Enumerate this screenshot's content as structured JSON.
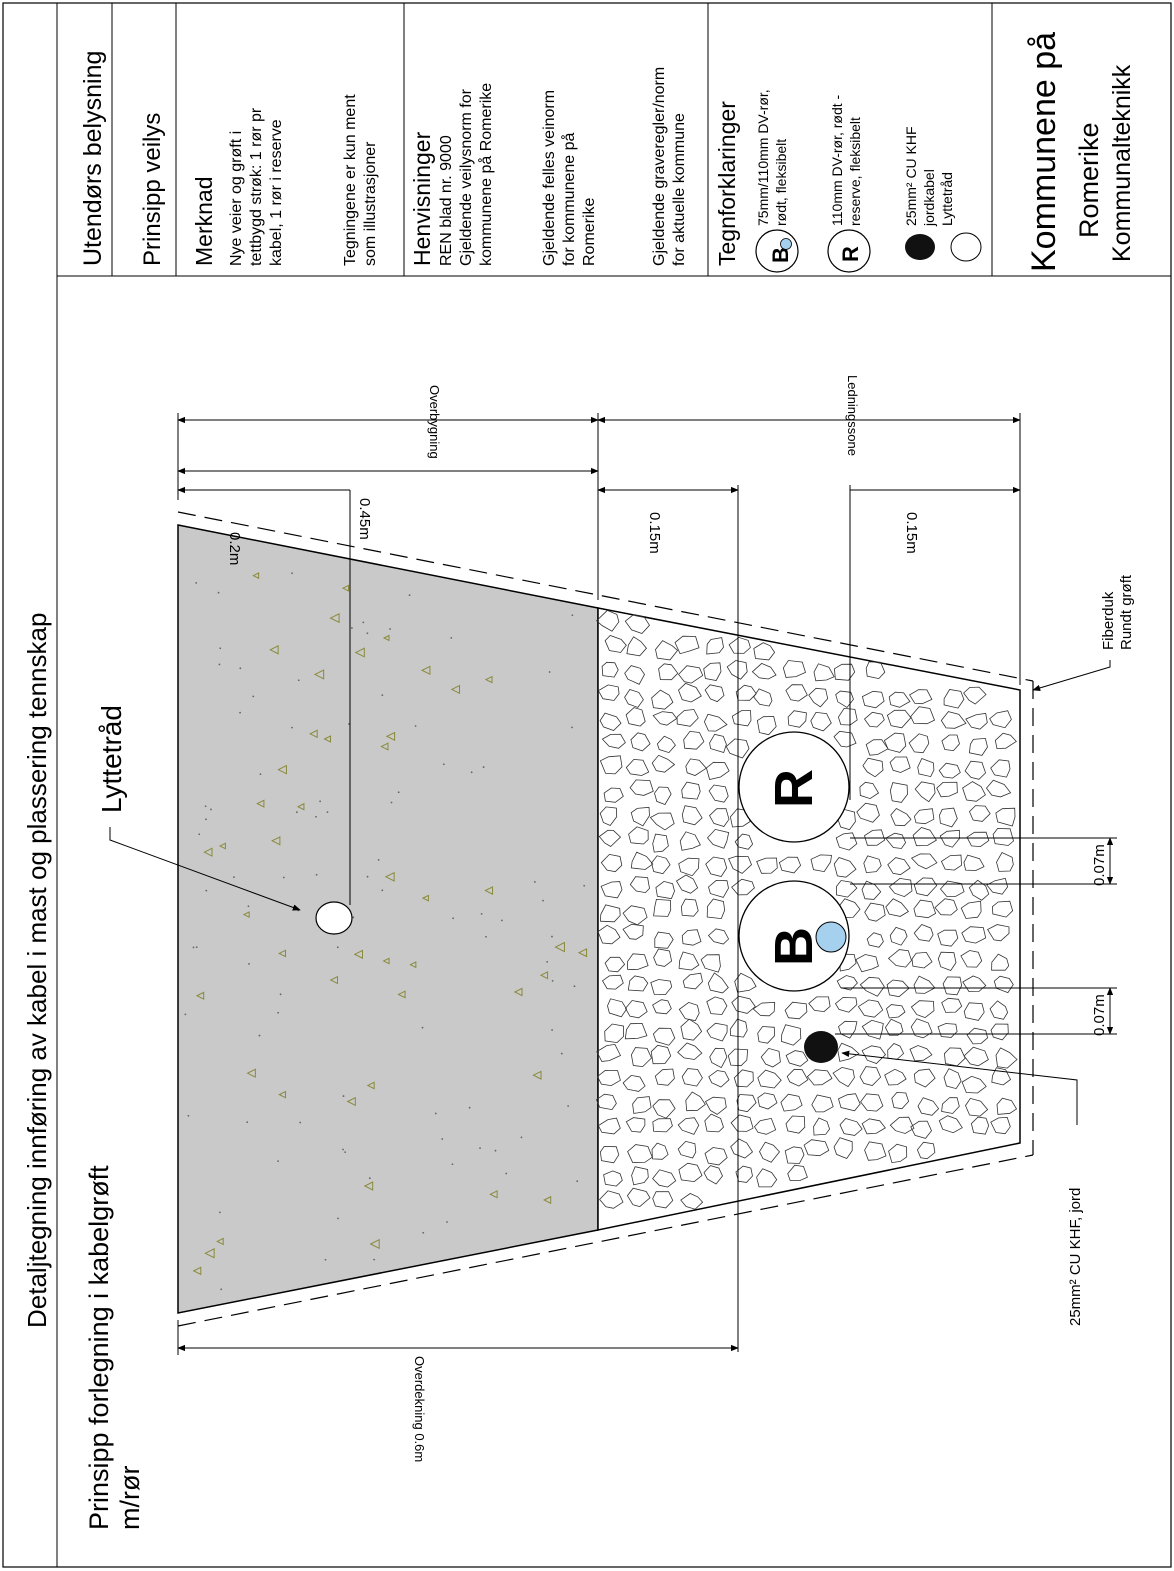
{
  "title": "Detaljtegning innføring av kabel i mast og plassering tennskap",
  "subtitle_line1": "Prinsipp forlegning i kabelgrøft",
  "subtitle_line2": "m/rør",
  "title_block": {
    "row1": "Utendørs belysning",
    "row2": "Prinsipp veilys",
    "merknad_head": "Merknad",
    "merknad_l1": "Nye veier og grøft i",
    "merknad_l2": "tettbygd strøk: 1 rør pr",
    "merknad_l3": "kabel, 1 rør i reserve",
    "merknad_l4": "Tegningene er kun ment",
    "merknad_l5": "som illustrasjoner",
    "henv_head": "Henvisninger",
    "henv_l1": "REN blad nr. 9000",
    "henv_l2": "Gjeldende veilysnorm for",
    "henv_l3": "kommunene på Romerike",
    "henv_l4": "Gjeldende felles veinorm",
    "henv_l5": "for kommunene på",
    "henv_l6": "Romerike",
    "henv_l7": "Gjeldende graveregler/norm",
    "henv_l8": "for aktuelle kommune",
    "legend_head": "Tegnforklaringer",
    "legend_b_l1": "75mm/110mm DV-rør,",
    "legend_b_l2": "rødt, fleksibelt",
    "legend_r_l1": "110mm DV-rør, rødt -",
    "legend_r_l2": "reserve, fleksibelt",
    "legend_cu_l1": "25mm² CU KHF",
    "legend_cu_l2": "jordkabel",
    "legend_lytt": "Lyttetråd",
    "org_l1": "Kommunene på",
    "org_l2": "Romerike",
    "org_l3": "Kommunalteknikk"
  },
  "drawing": {
    "pipe_b_letter": "B",
    "pipe_r_letter": "R",
    "lyttetraad_label": "Lyttetråd",
    "fiberduk_l1": "Fiberduk",
    "fiberduk_l2": "Rundt grøft",
    "cu_label": "25mm² CU KHF, jord",
    "dim_overbygning": "Overbygning",
    "dim_ledningssone": "Ledningssone",
    "dim_045": "0.45m",
    "dim_02": "0.2m",
    "dim_015_a": "0.15m",
    "dim_015_b": "0.15m",
    "dim_overdekning": "Overdekning 0.6m",
    "dim_007_a": "0.07m",
    "dim_007_b": "0.07m"
  },
  "colors": {
    "fill_gray": "#c9c9c9",
    "aggregate_green": "#8a8a3c",
    "pipe_b_dot": "#a6d1ee",
    "cable": "#111111"
  }
}
